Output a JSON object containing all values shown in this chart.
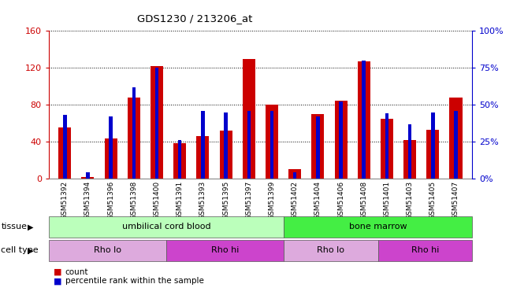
{
  "title": "GDS1230 / 213206_at",
  "samples": [
    "GSM51392",
    "GSM51394",
    "GSM51396",
    "GSM51398",
    "GSM51400",
    "GSM51391",
    "GSM51393",
    "GSM51395",
    "GSM51397",
    "GSM51399",
    "GSM51402",
    "GSM51404",
    "GSM51406",
    "GSM51408",
    "GSM51401",
    "GSM51403",
    "GSM51405",
    "GSM51407"
  ],
  "counts": [
    55,
    2,
    43,
    88,
    122,
    38,
    46,
    52,
    130,
    80,
    10,
    70,
    84,
    127,
    65,
    42,
    53,
    88
  ],
  "percentiles": [
    43,
    4,
    42,
    62,
    75,
    26,
    46,
    45,
    46,
    46,
    4,
    42,
    52,
    80,
    44,
    37,
    45,
    46
  ],
  "ylim_left": [
    0,
    160
  ],
  "ylim_right": [
    0,
    100
  ],
  "yticks_left": [
    0,
    40,
    80,
    120,
    160
  ],
  "yticks_right": [
    0,
    25,
    50,
    75,
    100
  ],
  "ytick_labels_right": [
    "0%",
    "25%",
    "50%",
    "75%",
    "100%"
  ],
  "bar_color": "#cc0000",
  "pct_color": "#0000cc",
  "bg_color": "#ffffff",
  "grid_color": "#000000",
  "tissue_groups": [
    {
      "label": "umbilical cord blood",
      "start": 0,
      "end": 10,
      "color": "#bbffbb"
    },
    {
      "label": "bone marrow",
      "start": 10,
      "end": 18,
      "color": "#44ee44"
    }
  ],
  "cell_type_groups": [
    {
      "label": "Rho lo",
      "start": 0,
      "end": 5,
      "color": "#ddaadd"
    },
    {
      "label": "Rho hi",
      "start": 5,
      "end": 10,
      "color": "#cc44cc"
    },
    {
      "label": "Rho lo",
      "start": 10,
      "end": 14,
      "color": "#ddaadd"
    },
    {
      "label": "Rho hi",
      "start": 14,
      "end": 18,
      "color": "#cc44cc"
    }
  ],
  "left_axis_color": "#cc0000",
  "right_axis_color": "#0000cc"
}
